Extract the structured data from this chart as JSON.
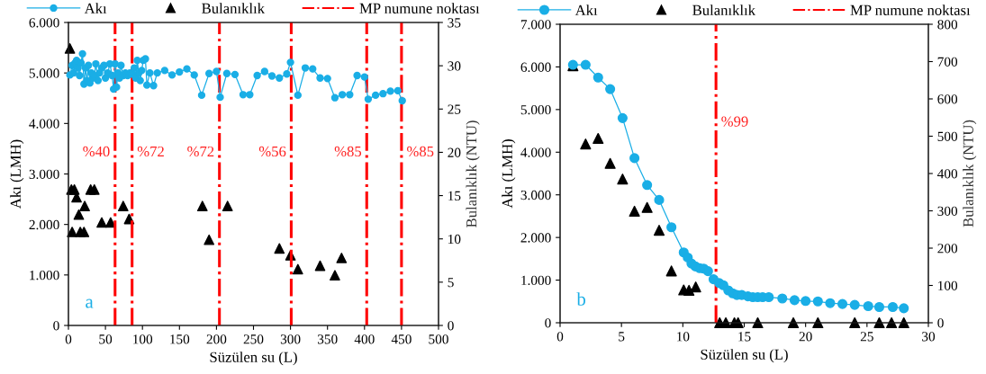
{
  "chart_data": [
    {
      "type": "line",
      "xlabel": "Süzülen su (L)",
      "ylabel": "Akı (LMH)",
      "y2label": "Bulanıklık (NTU)",
      "legend": "top",
      "grid": false,
      "xlim": [
        0,
        500
      ],
      "xticks": [
        0,
        50,
        100,
        150,
        200,
        250,
        300,
        350,
        400,
        450,
        500
      ],
      "ylim": [
        0,
        6000
      ],
      "yticks": [
        0,
        {
          "value": 1000,
          "label": "1.000"
        },
        {
          "value": 2000,
          "label": "2.000"
        },
        {
          "value": 3000,
          "label": "3.000"
        },
        {
          "value": 4000,
          "label": "4.000"
        },
        {
          "value": 5000,
          "label": "5.000"
        },
        {
          "value": 6000,
          "label": "6.000"
        }
      ],
      "y2lim": [
        0,
        35
      ],
      "y2ticks": [
        0,
        5,
        10,
        15,
        20,
        25,
        30,
        35
      ],
      "series": [
        {
          "name": "Akı",
          "marker": "circle",
          "color": "#1aaee6",
          "x": [
            2,
            5,
            7,
            9,
            11,
            13,
            15,
            17,
            19,
            21,
            23,
            25,
            27,
            29,
            31,
            33,
            35,
            37,
            40,
            42,
            45,
            48,
            50,
            53,
            56,
            59,
            61,
            63,
            65,
            67,
            69,
            71,
            74,
            77,
            80,
            83,
            86,
            89,
            91,
            93,
            95,
            97,
            99,
            101,
            104,
            106,
            110,
            115,
            120,
            130,
            140,
            150,
            160,
            170,
            180,
            190,
            200,
            205,
            214,
            225,
            236,
            245,
            255,
            265,
            275,
            285,
            295,
            300,
            310,
            320,
            330,
            340,
            350,
            360,
            370,
            380,
            390,
            400,
            405,
            415,
            425,
            435,
            445,
            451
          ],
          "values": [
            4960,
            5150,
            5000,
            5200,
            5250,
            5100,
            4950,
            5200,
            5380,
            4780,
            5100,
            4850,
            5150,
            4800,
            5000,
            4900,
            4950,
            5180,
            4850,
            5000,
            5100,
            5150,
            4900,
            5000,
            5180,
            4950,
            4680,
            5180,
            4720,
            5000,
            4900,
            5150,
            4950,
            5000,
            4950,
            5000,
            4980,
            5100,
            4900,
            5250,
            5000,
            4850,
            5050,
            5250,
            5280,
            4760,
            5000,
            4750,
            5000,
            5050,
            4960,
            5020,
            5080,
            4960,
            4560,
            4990,
            5030,
            4520,
            4990,
            4970,
            4570,
            4570,
            4950,
            5030,
            4940,
            4900,
            4980,
            5210,
            4560,
            5100,
            5080,
            4900,
            4890,
            4510,
            4570,
            4570,
            4950,
            4920,
            4480,
            4560,
            4590,
            4640,
            4650,
            4450
          ]
        },
        {
          "name": "Bulanıklık",
          "type": "scatter",
          "axis": "y2",
          "marker": "triangle",
          "color": "#000000",
          "x": [
            2,
            4,
            8,
            11,
            14,
            22,
            5,
            16,
            21,
            30,
            35,
            45,
            57,
            74,
            82,
            181,
            190,
            215,
            285,
            300,
            310,
            340,
            360,
            369
          ],
          "values": [
            32,
            15.7,
            15.7,
            14.8,
            12.8,
            13.8,
            10.8,
            10.8,
            10.8,
            15.7,
            15.7,
            11.9,
            11.9,
            13.8,
            12.3,
            13.8,
            9.9,
            13.8,
            8.9,
            8.1,
            6.5,
            6.9,
            5.8,
            7.8
          ]
        }
      ],
      "ref_lines": [
        {
          "axis": "x",
          "value": 63,
          "label": "MP numune noktası",
          "color": "#ff0000",
          "line_style": "dashdot"
        },
        {
          "axis": "x",
          "value": 86,
          "color": "#ff0000",
          "line_style": "dashdot"
        },
        {
          "axis": "x",
          "value": 204,
          "color": "#ff0000",
          "line_style": "dashdot"
        },
        {
          "axis": "x",
          "value": 301,
          "color": "#ff0000",
          "line_style": "dashdot"
        },
        {
          "axis": "x",
          "value": 403,
          "color": "#ff0000",
          "line_style": "dashdot"
        },
        {
          "axis": "x",
          "value": 450,
          "color": "#ff0000",
          "line_style": "dashdot"
        }
      ],
      "annotations": [
        "%40",
        "%72",
        "%72",
        "%56",
        "%85",
        "%85",
        "a"
      ]
    },
    {
      "type": "line",
      "xlabel": "Süzülen su (L)",
      "ylabel": "Akı (LMH)",
      "y2label": "Bulanıklık (NTU)",
      "legend": "top",
      "grid": false,
      "xlim": [
        0,
        30
      ],
      "xticks": [
        0,
        5,
        10,
        15,
        20,
        25,
        30
      ],
      "ylim": [
        0,
        7000
      ],
      "yticks": [
        0,
        {
          "value": 1000,
          "label": "1.000"
        },
        {
          "value": 2000,
          "label": "2.000"
        },
        {
          "value": 3000,
          "label": "3.000"
        },
        {
          "value": 4000,
          "label": "4.000"
        },
        {
          "value": 5000,
          "label": "5.000"
        },
        {
          "value": 6000,
          "label": "6.000"
        },
        {
          "value": 7000,
          "label": "7.000"
        }
      ],
      "y2lim": [
        0,
        800
      ],
      "y2ticks": [
        0,
        100,
        200,
        300,
        400,
        500,
        600,
        700,
        800
      ],
      "series": [
        {
          "name": "Akı",
          "marker": "circle",
          "color": "#1aaee6",
          "x": [
            1.05,
            2.08,
            3.1,
            4.08,
            5.09,
            6.06,
            7.09,
            8.07,
            9.07,
            10.07,
            10.4,
            10.7,
            11.03,
            11.37,
            11.7,
            12.05,
            12.5,
            12.96,
            13.3,
            13.7,
            14.06,
            14.4,
            14.8,
            15.3,
            15.7,
            16.1,
            16.5,
            17,
            18.1,
            19.1,
            20,
            21,
            22,
            23,
            24,
            25.1,
            26,
            27.1,
            28
          ],
          "values": [
            6050,
            6050,
            5750,
            5480,
            4800,
            3860,
            3230,
            2880,
            2240,
            1650,
            1530,
            1390,
            1320,
            1280,
            1270,
            1210,
            1020,
            930,
            880,
            760,
            690,
            650,
            650,
            620,
            600,
            600,
            600,
            600,
            570,
            530,
            510,
            500,
            460,
            440,
            420,
            390,
            370,
            370,
            340
          ]
        },
        {
          "name": "Bulanıklık",
          "type": "scatter",
          "axis": "y2",
          "marker": "triangle",
          "color": "#000000",
          "x": [
            1.05,
            2.08,
            3.1,
            4.08,
            5.09,
            6.06,
            7.09,
            8.07,
            9.07,
            10.07,
            10.5,
            11.05,
            13,
            13.5,
            14.2,
            14.5,
            16.1,
            19,
            21,
            24,
            26,
            27,
            28
          ],
          "values": [
            689,
            479,
            494,
            427,
            385,
            299,
            309,
            248,
            139,
            88,
            87,
            96,
            0,
            0,
            0,
            0,
            0,
            0,
            0,
            0,
            0,
            0,
            0
          ]
        }
      ],
      "ref_lines": [
        {
          "axis": "x",
          "value": 12.7,
          "label": "MP numune noktası",
          "color": "#ff0000",
          "line_style": "dashdot"
        }
      ],
      "annotations": [
        "%99",
        "b"
      ]
    }
  ]
}
